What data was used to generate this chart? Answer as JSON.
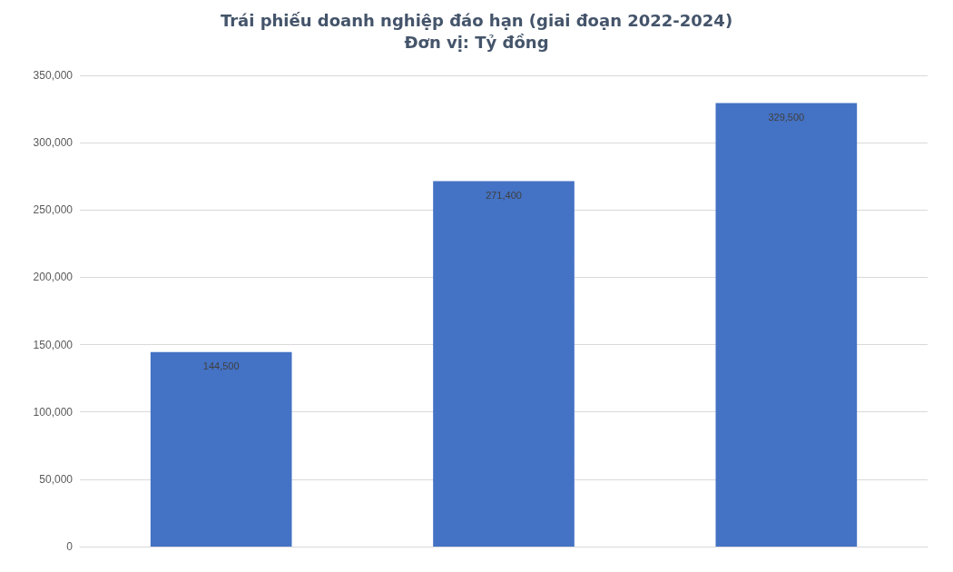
{
  "chart_data": {
    "type": "bar",
    "title": "Trái phiếu doanh nghiệp đáo hạn (giai đoạn 2022-2024)",
    "subtitle": "Đơn vị: Tỷ đồng",
    "categories": [
      null,
      null,
      null
    ],
    "values": [
      144500,
      271400,
      329500
    ],
    "value_labels": [
      "144,500",
      "271,400",
      "329,500"
    ],
    "color": "#4472c4",
    "ylim": [
      0,
      350000
    ],
    "yticks": [
      {
        "value": 0,
        "label": "0"
      },
      {
        "value": 50000,
        "label": "50,000"
      },
      {
        "value": 100000,
        "label": "100,000"
      },
      {
        "value": 150000,
        "label": "150,000"
      },
      {
        "value": 200000,
        "label": "200,000"
      },
      {
        "value": 250000,
        "label": "250,000"
      },
      {
        "value": 300000,
        "label": "300,000"
      },
      {
        "value": 350000,
        "label": "350,000"
      }
    ],
    "grid": true
  }
}
